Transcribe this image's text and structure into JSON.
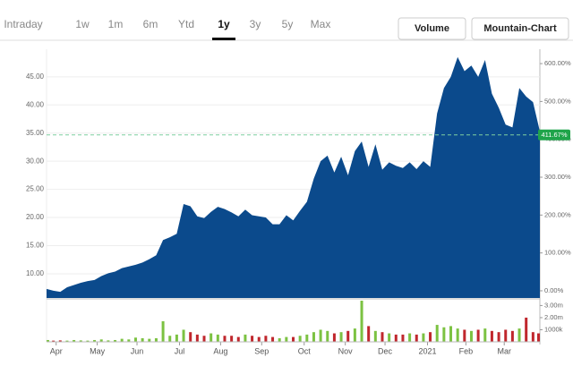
{
  "toolbar": {
    "tabs": [
      "Intraday",
      "1w",
      "1m",
      "6m",
      "Ytd",
      "1y",
      "3y",
      "5y",
      "Max"
    ],
    "selected_index": 5,
    "buttons": [
      "Volume",
      "Mountain-Chart"
    ]
  },
  "chart_data": [
    {
      "type": "area",
      "color": "#0b4a8c",
      "x": [
        0,
        5,
        10,
        15,
        20,
        25,
        30,
        35,
        40,
        45,
        50,
        55,
        60,
        65,
        70,
        75,
        80,
        85,
        90,
        95,
        100,
        105,
        110,
        115,
        120,
        125,
        130,
        135,
        140,
        145,
        150,
        155,
        160,
        165,
        170,
        175,
        180,
        185,
        190,
        195,
        200,
        205,
        210,
        215,
        220,
        225,
        230,
        235,
        240,
        245,
        250,
        255,
        260,
        265,
        270,
        275,
        280,
        285,
        290,
        295,
        300,
        305,
        310,
        315,
        320,
        325,
        330,
        335,
        340,
        345,
        350,
        355,
        360
      ],
      "series": [
        {
          "values": [
            7.3,
            7.0,
            6.8,
            7.6,
            8.0,
            8.4,
            8.7,
            8.9,
            9.6,
            10.1,
            10.4,
            11.0,
            11.3,
            11.6,
            12.0,
            12.6,
            13.3,
            16.0,
            16.5,
            17.1,
            22.4,
            22.0,
            20.2,
            19.9,
            21.0,
            21.9,
            21.5,
            20.9,
            20.2,
            21.4,
            20.4,
            20.2,
            20.0,
            18.8,
            18.8,
            20.4,
            19.5,
            21.2,
            22.8,
            26.9,
            30.0,
            31.0,
            28.0,
            30.8,
            27.5,
            31.8,
            33.5,
            29.0,
            33.0,
            28.5,
            29.8,
            29.2,
            28.8,
            29.8,
            28.6,
            30.0,
            29.0,
            38.5,
            43.0,
            45.0,
            48.5,
            46.0,
            47.0,
            45.0,
            48.0,
            42.0,
            39.5,
            36.5,
            36.0,
            43.0,
            41.5,
            40.5,
            35.3
          ]
        }
      ],
      "xlim": [
        0,
        360
      ],
      "ylim": [
        5.7,
        49.9
      ],
      "yticks": [
        {
          "value": 10,
          "label": "10.00"
        },
        {
          "value": 15,
          "label": "15.00"
        },
        {
          "value": 20,
          "label": "20.00"
        },
        {
          "value": 25,
          "label": "25.00"
        },
        {
          "value": 30,
          "label": "30.00"
        },
        {
          "value": 35,
          "label": "35.00"
        },
        {
          "value": 40,
          "label": "40.00"
        },
        {
          "value": 45,
          "label": "45.00"
        }
      ],
      "y2lim": [
        -19,
        638
      ],
      "y2ticks": [
        {
          "value": 0,
          "label": "0.00%"
        },
        {
          "value": 100,
          "label": "100.00%"
        },
        {
          "value": 200,
          "label": "200.00%"
        },
        {
          "value": 300,
          "label": "300.00%"
        },
        {
          "value": 400,
          "label": "400.00%"
        },
        {
          "value": 500,
          "label": "500.00%"
        },
        {
          "value": 600,
          "label": "600.00%"
        }
      ],
      "current": {
        "value": 411.67,
        "label": "411.67%"
      },
      "grid": true
    },
    {
      "type": "bar",
      "up_color": "#7cc242",
      "down_color": "#c0272d",
      "x": [
        0,
        5,
        10,
        15,
        20,
        25,
        30,
        35,
        40,
        45,
        50,
        55,
        60,
        65,
        70,
        75,
        80,
        85,
        90,
        95,
        100,
        105,
        110,
        115,
        120,
        125,
        130,
        135,
        140,
        145,
        150,
        155,
        160,
        165,
        170,
        175,
        180,
        185,
        190,
        195,
        200,
        205,
        210,
        215,
        220,
        225,
        230,
        235,
        240,
        245,
        250,
        255,
        260,
        265,
        270,
        275,
        280,
        285,
        290,
        295,
        300,
        305,
        310,
        315,
        320,
        325,
        330,
        335,
        340,
        345,
        350,
        355,
        360
      ],
      "values": [
        0.15,
        0.1,
        0.12,
        0.1,
        0.15,
        0.12,
        0.1,
        0.15,
        0.2,
        0.12,
        0.15,
        0.25,
        0.2,
        0.35,
        0.3,
        0.25,
        0.3,
        1.7,
        0.5,
        0.6,
        1.0,
        0.8,
        0.6,
        0.5,
        0.7,
        0.6,
        0.5,
        0.5,
        0.4,
        0.6,
        0.5,
        0.4,
        0.5,
        0.4,
        0.3,
        0.4,
        0.4,
        0.5,
        0.6,
        0.8,
        1.0,
        0.9,
        0.7,
        0.8,
        0.9,
        1.1,
        3.4,
        1.3,
        0.9,
        0.8,
        0.7,
        0.6,
        0.6,
        0.7,
        0.6,
        0.7,
        0.8,
        1.4,
        1.2,
        1.3,
        1.1,
        1.0,
        0.9,
        1.0,
        1.1,
        0.9,
        0.8,
        1.0,
        0.9,
        1.1,
        2.0,
        0.8,
        0.7
      ],
      "xlim": [
        0,
        360
      ],
      "ylim": [
        0,
        3.4
      ],
      "yticks": [
        {
          "value": 1,
          "label": "1000k"
        },
        {
          "value": 2,
          "label": "2.00m"
        },
        {
          "value": 3,
          "label": "3.00m"
        }
      ],
      "xticks": [
        {
          "value": 7,
          "label": "Apr"
        },
        {
          "value": 37,
          "label": "May"
        },
        {
          "value": 66,
          "label": "Jun"
        },
        {
          "value": 97,
          "label": "Jul"
        },
        {
          "value": 127,
          "label": "Aug"
        },
        {
          "value": 157,
          "label": "Sep"
        },
        {
          "value": 188,
          "label": "Oct"
        },
        {
          "value": 218,
          "label": "Nov"
        },
        {
          "value": 247,
          "label": "Dec"
        },
        {
          "value": 278,
          "label": "2021"
        },
        {
          "value": 306,
          "label": "Feb"
        },
        {
          "value": 334,
          "label": "Mar"
        }
      ]
    }
  ]
}
